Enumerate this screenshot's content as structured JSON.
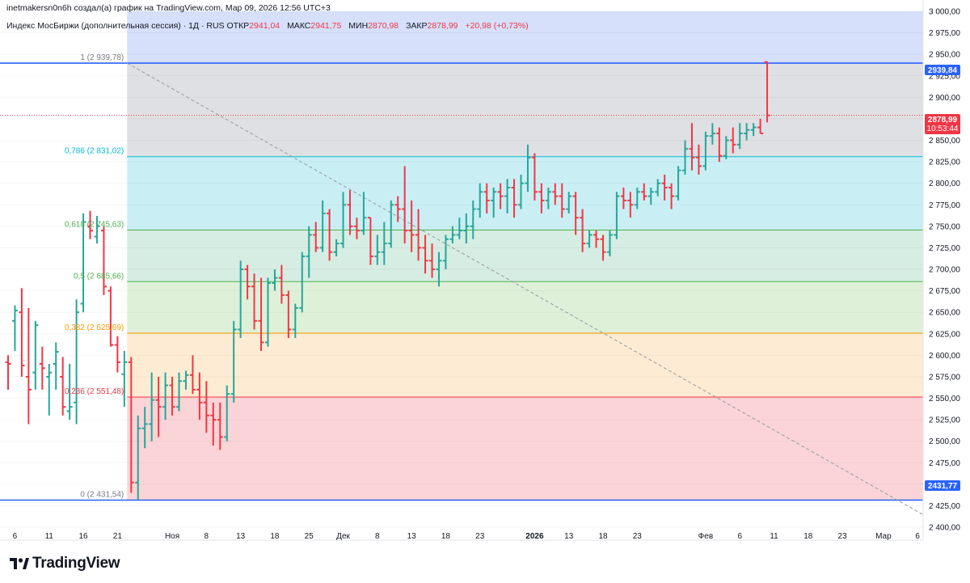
{
  "header": {
    "author_line": "inetmakersn0n6h создал(а) график на TradingView.com, Мар 09, 2026 12:56 UTC+3"
  },
  "legend": {
    "instrument": "Индекс МосБиржи (дополнительная сессия) · 1Д · RUS",
    "open_label": "ОТКР",
    "open_value": "2941,04",
    "high_label": "МАКС",
    "high_value": "2941,75",
    "low_label": "МИН",
    "low_value": "2870,98",
    "close_label": "ЗАКР",
    "close_value": "2878,99",
    "change_value": "+20,98 (+0,73%)"
  },
  "brand": {
    "name": "TradingView"
  },
  "price_badges": {
    "upper_level": "2939,84",
    "last_price": "2878,99",
    "countdown": "10:53:44",
    "lower_level": "2431,77"
  },
  "colors": {
    "up": "#26a69a",
    "down": "#f23645",
    "fib_blue_line": "#2962ff",
    "fib_786": "#00bcd4",
    "fib_618": "#4caf50",
    "fib_5": "#4caf50",
    "fib_382": "#ff9800",
    "fib_236": "#f23645"
  },
  "chart_data": {
    "type": "ohlc",
    "title": "",
    "ylim": [
      2385,
      3000
    ],
    "y_ticks": [
      2400,
      2425,
      2450,
      2475,
      2500,
      2525,
      2550,
      2575,
      2600,
      2625,
      2650,
      2675,
      2700,
      2725,
      2750,
      2775,
      2800,
      2825,
      2850,
      2875,
      2900,
      2925,
      2950,
      2975,
      3000
    ],
    "y_tick_labels": [
      "2 400,00",
      "2 425,00",
      "2 450,00",
      "2 475,00",
      "2 500,00",
      "2 525,00",
      "2 550,00",
      "2 575,00",
      "2 600,00",
      "2 625,00",
      "2 650,00",
      "2 675,00",
      "2 700,00",
      "2 725,00",
      "2 750,00",
      "2 775,00",
      "2 800,00",
      "2 825,00",
      "2 850,00",
      "2 875,00",
      "2 900,00",
      "2 925,00",
      "2 950,00",
      "2 975,00",
      "3 000,00"
    ],
    "x_tick_labels": [
      "6",
      "11",
      "16",
      "21",
      "Ноя",
      "8",
      "13",
      "18",
      "25",
      "Дек",
      "8",
      "13",
      "18",
      "23",
      "2026",
      "13",
      "18",
      "23",
      "Фев",
      "6",
      "11",
      "18",
      "23",
      "Мар",
      "6"
    ],
    "x_tick_bar_index": [
      1,
      6,
      11,
      16,
      24,
      29,
      34,
      39,
      44,
      49,
      54,
      59,
      64,
      69,
      77,
      82,
      87,
      92,
      102,
      107,
      112,
      117,
      122,
      128,
      133
    ],
    "bold_x_ticks": [
      "2026"
    ],
    "fib_levels": [
      {
        "ratio": "1",
        "value": 2939.78,
        "label": "1 (2 939,78)"
      },
      {
        "ratio": "0.786",
        "value": 2831.02,
        "label": "0,786 (2 831,02)"
      },
      {
        "ratio": "0.618",
        "value": 2745.63,
        "label": "0,618 (2 745,63)"
      },
      {
        "ratio": "0.5",
        "value": 2685.66,
        "label": "0,5 (2 685,66)"
      },
      {
        "ratio": "0.382",
        "value": 2625.69,
        "label": "0,382 (2 625,69)"
      },
      {
        "ratio": "0.236",
        "value": 2551.48,
        "label": "0,236 (2 551,48)"
      },
      {
        "ratio": "0",
        "value": 2431.54,
        "label": "0 (2 431,54)"
      }
    ],
    "fib_start_bar": 18,
    "last_price": 2878.99,
    "ohlc": [
      [
        2592,
        2600,
        2560,
        2590
      ],
      [
        2640,
        2658,
        2605,
        2652
      ],
      [
        2650,
        2678,
        2575,
        2588
      ],
      [
        2575,
        2655,
        2520,
        2560
      ],
      [
        2580,
        2640,
        2560,
        2635
      ],
      [
        2590,
        2610,
        2560,
        2585
      ],
      [
        2575,
        2590,
        2530,
        2580
      ],
      [
        2590,
        2615,
        2560,
        2604
      ],
      [
        2575,
        2598,
        2530,
        2540
      ],
      [
        2535,
        2590,
        2525,
        2540
      ],
      [
        2545,
        2665,
        2520,
        2650
      ],
      [
        2660,
        2765,
        2650,
        2755
      ],
      [
        2750,
        2768,
        2735,
        2745
      ],
      [
        2738,
        2762,
        2730,
        2750
      ],
      [
        2745,
        2750,
        2670,
        2680
      ],
      [
        2675,
        2680,
        2610,
        2612
      ],
      [
        2612,
        2622,
        2580,
        2592
      ],
      [
        2578,
        2605,
        2540,
        2592
      ],
      [
        2592,
        2598,
        2440,
        2452
      ],
      [
        2452,
        2530,
        2432,
        2515
      ],
      [
        2515,
        2540,
        2492,
        2520
      ],
      [
        2520,
        2580,
        2500,
        2548
      ],
      [
        2548,
        2575,
        2505,
        2540
      ],
      [
        2540,
        2580,
        2525,
        2565
      ],
      [
        2565,
        2575,
        2530,
        2540
      ],
      [
        2540,
        2580,
        2535,
        2570
      ],
      [
        2570,
        2582,
        2560,
        2577
      ],
      [
        2577,
        2600,
        2555,
        2560
      ],
      [
        2560,
        2580,
        2525,
        2545
      ],
      [
        2545,
        2570,
        2510,
        2530
      ],
      [
        2530,
        2545,
        2495,
        2525
      ],
      [
        2525,
        2545,
        2490,
        2505
      ],
      [
        2505,
        2565,
        2500,
        2555
      ],
      [
        2555,
        2640,
        2545,
        2630
      ],
      [
        2630,
        2710,
        2620,
        2700
      ],
      [
        2700,
        2705,
        2665,
        2680
      ],
      [
        2680,
        2695,
        2630,
        2640
      ],
      [
        2640,
        2690,
        2605,
        2615
      ],
      [
        2615,
        2690,
        2610,
        2684
      ],
      [
        2684,
        2700,
        2675,
        2690
      ],
      [
        2690,
        2705,
        2660,
        2670
      ],
      [
        2670,
        2675,
        2620,
        2630
      ],
      [
        2630,
        2660,
        2620,
        2655
      ],
      [
        2655,
        2720,
        2650,
        2715
      ],
      [
        2715,
        2750,
        2690,
        2740
      ],
      [
        2740,
        2755,
        2720,
        2725
      ],
      [
        2725,
        2780,
        2720,
        2765
      ],
      [
        2765,
        2770,
        2710,
        2720
      ],
      [
        2720,
        2735,
        2715,
        2730
      ],
      [
        2730,
        2790,
        2725,
        2775
      ],
      [
        2775,
        2792,
        2740,
        2750
      ],
      [
        2750,
        2760,
        2735,
        2745
      ],
      [
        2745,
        2790,
        2740,
        2760
      ],
      [
        2760,
        2760,
        2705,
        2715
      ],
      [
        2715,
        2740,
        2705,
        2720
      ],
      [
        2720,
        2755,
        2705,
        2730
      ],
      [
        2730,
        2780,
        2725,
        2775
      ],
      [
        2775,
        2785,
        2755,
        2770
      ],
      [
        2770,
        2820,
        2730,
        2745
      ],
      [
        2745,
        2780,
        2720,
        2740
      ],
      [
        2740,
        2770,
        2710,
        2725
      ],
      [
        2725,
        2740,
        2695,
        2710
      ],
      [
        2710,
        2730,
        2690,
        2700
      ],
      [
        2700,
        2720,
        2680,
        2710
      ],
      [
        2710,
        2740,
        2700,
        2735
      ],
      [
        2735,
        2750,
        2730,
        2740
      ],
      [
        2740,
        2760,
        2735,
        2745
      ],
      [
        2745,
        2765,
        2730,
        2750
      ],
      [
        2750,
        2780,
        2735,
        2770
      ],
      [
        2770,
        2800,
        2760,
        2790
      ],
      [
        2790,
        2800,
        2765,
        2780
      ],
      [
        2780,
        2795,
        2760,
        2790
      ],
      [
        2790,
        2800,
        2770,
        2785
      ],
      [
        2785,
        2805,
        2765,
        2795
      ],
      [
        2795,
        2805,
        2760,
        2775
      ],
      [
        2775,
        2810,
        2770,
        2800
      ],
      [
        2800,
        2845,
        2790,
        2830
      ],
      [
        2830,
        2835,
        2780,
        2790
      ],
      [
        2790,
        2800,
        2765,
        2780
      ],
      [
        2780,
        2795,
        2770,
        2790
      ],
      [
        2790,
        2800,
        2775,
        2785
      ],
      [
        2785,
        2800,
        2760,
        2770
      ],
      [
        2770,
        2790,
        2765,
        2785
      ],
      [
        2785,
        2790,
        2740,
        2760
      ],
      [
        2760,
        2770,
        2720,
        2730
      ],
      [
        2730,
        2745,
        2725,
        2740
      ],
      [
        2740,
        2745,
        2725,
        2735
      ],
      [
        2735,
        2740,
        2710,
        2720
      ],
      [
        2720,
        2745,
        2715,
        2740
      ],
      [
        2740,
        2790,
        2735,
        2785
      ],
      [
        2785,
        2795,
        2770,
        2780
      ],
      [
        2780,
        2790,
        2760,
        2775
      ],
      [
        2775,
        2795,
        2770,
        2790
      ],
      [
        2790,
        2800,
        2780,
        2785
      ],
      [
        2785,
        2795,
        2775,
        2790
      ],
      [
        2790,
        2805,
        2785,
        2800
      ],
      [
        2800,
        2810,
        2780,
        2795
      ],
      [
        2795,
        2800,
        2770,
        2785
      ],
      [
        2785,
        2820,
        2780,
        2815
      ],
      [
        2815,
        2850,
        2810,
        2840
      ],
      [
        2840,
        2870,
        2815,
        2830
      ],
      [
        2830,
        2845,
        2810,
        2820
      ],
      [
        2820,
        2860,
        2815,
        2855
      ],
      [
        2855,
        2870,
        2845,
        2858
      ],
      [
        2858,
        2865,
        2825,
        2832
      ],
      [
        2832,
        2855,
        2828,
        2850
      ],
      [
        2850,
        2865,
        2835,
        2845
      ],
      [
        2845,
        2870,
        2840,
        2858
      ],
      [
        2858,
        2870,
        2850,
        2862
      ],
      [
        2862,
        2870,
        2855,
        2865
      ],
      [
        2865,
        2875,
        2858,
        2858
      ],
      [
        2941.04,
        2941.75,
        2870.98,
        2878.99
      ]
    ]
  }
}
